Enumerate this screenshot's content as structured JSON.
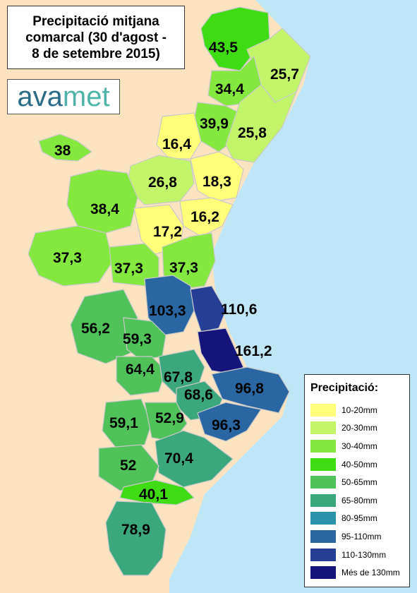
{
  "title": {
    "lines": [
      "Precipitació mitjana",
      "comarcal (30 d'agost -",
      "8 de setembre 2015)"
    ]
  },
  "logo": {
    "part1": "ava",
    "part2": "met"
  },
  "colors": {
    "sea": "#bfe6f7",
    "land": "#fbe3bf",
    "c10_20": "#ffff7a",
    "c20_30": "#c3f56b",
    "c30_40": "#84e83f",
    "c40_50": "#3fdc14",
    "c50_65": "#4fc25a",
    "c65_80": "#3aa87c",
    "c80_95": "#2a93a9",
    "c95_110": "#2a66a2",
    "c110_130": "#253f96",
    "c130": "#14147a"
  },
  "map": {
    "values": [
      "43,5",
      "25,7",
      "34,4",
      "39,9",
      "25,8",
      "38",
      "16,4",
      "26,8",
      "18,3",
      "38,4",
      "16,2",
      "17,2",
      "37,3",
      "37,3",
      "37,3",
      "103,3",
      "110,6",
      "56,2",
      "59,3",
      "161,2",
      "64,4",
      "67,8",
      "96,8",
      "68,6",
      "59,1",
      "52,9",
      "96,3",
      "70,4",
      "52",
      "40,1",
      "78,9"
    ]
  },
  "legend": {
    "title": "Precipitació:",
    "items": [
      {
        "label": "10-20mm",
        "color": "#ffff7a"
      },
      {
        "label": "20-30mm",
        "color": "#c3f56b"
      },
      {
        "label": "30-40mm",
        "color": "#84e83f"
      },
      {
        "label": "40-50mm",
        "color": "#3fdc14"
      },
      {
        "label": "50-65mm",
        "color": "#4fc25a"
      },
      {
        "label": "65-80mm",
        "color": "#3aa87c"
      },
      {
        "label": "80-95mm",
        "color": "#2a93a9"
      },
      {
        "label": "95-110mm",
        "color": "#2a66a2"
      },
      {
        "label": "110-130mm",
        "color": "#253f96"
      },
      {
        "label": "Més de 130mm",
        "color": "#14147a"
      }
    ]
  }
}
